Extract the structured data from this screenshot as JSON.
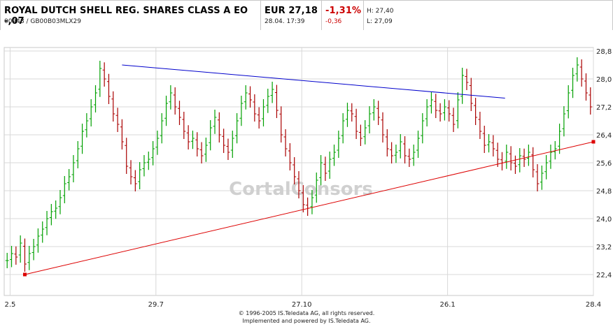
{
  "quote": {
    "name": "ROYAL DUTCH SHELL REG. SHARES CLASS A EO -,07",
    "ids": "00948  /  GB00B03MLX29",
    "price": "EUR 27,18",
    "datetime": "28.04. 17:39",
    "change_pct": "-1,31%",
    "change_abs": "-0,36",
    "high": "H: 27,40",
    "low": "L: 27,09"
  },
  "watermark": "CortalConsors",
  "footer": {
    "line1": "© 1996-2005 IS.Teledata AG, all rights reserved.",
    "line2": "Implemented and powered by IS.Teledata AG."
  },
  "colors": {
    "up_bar": "#00a000",
    "down_bar": "#aa0000",
    "resistance_line": "#0000cc",
    "support_line": "#dd0000",
    "grid": "#d8d8d8"
  },
  "chart_data": {
    "type": "ohlc",
    "x_ticks": [
      "2.5",
      "29.7",
      "27.10",
      "26.1",
      "28.4"
    ],
    "y_ticks": [
      "22,4",
      "23,2",
      "24,0",
      "24,8",
      "25,6",
      "26,4",
      "27,2",
      "28,0",
      "28,8"
    ],
    "ylim": [
      21.8,
      28.9
    ],
    "last_value": 26.2,
    "trendlines": [
      {
        "name": "resistance",
        "from": [
          0.2,
          28.4
        ],
        "to": [
          0.85,
          27.45
        ]
      },
      {
        "name": "support",
        "from": [
          0.035,
          22.4
        ],
        "to": [
          1.0,
          26.2
        ]
      }
    ],
    "closes": [
      22.8,
      23.0,
      22.9,
      23.3,
      22.7,
      23.0,
      23.2,
      23.5,
      23.7,
      24.0,
      24.2,
      24.3,
      24.6,
      25.0,
      25.2,
      25.6,
      26.0,
      26.5,
      26.8,
      27.2,
      27.6,
      28.3,
      28.0,
      27.5,
      27.0,
      26.7,
      26.2,
      25.5,
      25.2,
      25.0,
      25.4,
      25.6,
      25.7,
      26.0,
      26.3,
      26.8,
      27.3,
      27.6,
      27.2,
      26.9,
      26.5,
      26.2,
      26.3,
      26.0,
      25.8,
      26.1,
      26.6,
      26.9,
      26.4,
      26.1,
      25.9,
      26.3,
      26.8,
      27.3,
      27.6,
      27.4,
      27.0,
      26.8,
      27.2,
      27.5,
      27.7,
      27.1,
      26.4,
      26.0,
      25.6,
      25.2,
      24.8,
      24.4,
      24.3,
      24.6,
      25.1,
      25.6,
      25.3,
      25.7,
      25.9,
      26.3,
      26.8,
      27.1,
      27.0,
      26.5,
      26.3,
      26.6,
      27.0,
      27.2,
      26.9,
      26.4,
      26.0,
      25.8,
      25.9,
      26.2,
      25.8,
      25.7,
      25.9,
      26.3,
      26.8,
      27.2,
      27.4,
      27.1,
      27.0,
      27.2,
      27.0,
      26.7,
      27.4,
      28.1,
      27.9,
      27.3,
      26.9,
      26.5,
      26.1,
      26.2,
      26.0,
      25.7,
      25.6,
      25.9,
      25.6,
      25.5,
      25.8,
      25.7,
      25.9,
      25.4,
      25.0,
      25.3,
      25.6,
      25.9,
      26.0,
      26.5,
      27.0,
      27.6,
      28.1,
      28.4,
      28.0,
      27.6,
      27.2
    ]
  }
}
